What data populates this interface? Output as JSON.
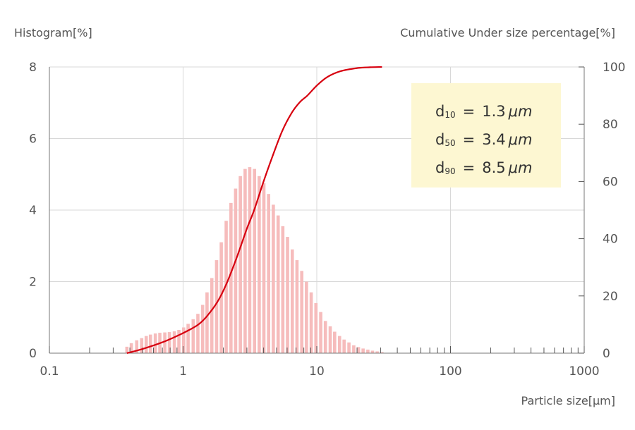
{
  "chart_data": {
    "type": "bar",
    "x_scale": "log",
    "xlim": [
      0.1,
      1000
    ],
    "ylim_left": [
      0,
      8
    ],
    "ylim_right": [
      0,
      100
    ],
    "y_left_label": "Histogram[%]",
    "y_right_label": "Cumulative Under size percentage[%]",
    "xlabel": "Particle size[μm]",
    "x_tick_labels": [
      "0.1",
      "1",
      "10",
      "100",
      "1000"
    ],
    "y_left_ticks": [
      "0",
      "2",
      "4",
      "6",
      "8"
    ],
    "y_right_ticks": [
      "0",
      "20",
      "40",
      "60",
      "80",
      "100"
    ],
    "grid": true,
    "colors": {
      "histogram": "#f6bcbc",
      "cumulative": "#d7000f",
      "box": "#fdf7d2"
    },
    "series": [
      {
        "name": "Histogram",
        "type": "bar",
        "axis": "left",
        "x": [
          0.38,
          0.41,
          0.45,
          0.49,
          0.53,
          0.57,
          0.62,
          0.67,
          0.73,
          0.79,
          0.86,
          0.93,
          1.01,
          1.09,
          1.19,
          1.29,
          1.4,
          1.51,
          1.64,
          1.78,
          1.93,
          2.1,
          2.28,
          2.47,
          2.68,
          2.91,
          3.15,
          3.42,
          3.71,
          4.02,
          4.36,
          4.73,
          5.14,
          5.57,
          6.04,
          6.56,
          7.11,
          7.72,
          8.37,
          9.08,
          9.85,
          10.7,
          11.6,
          12.6,
          13.6,
          14.8,
          16.0,
          17.4,
          18.9,
          20.5,
          22.2,
          24.1,
          26.1,
          28.3,
          30.7
        ],
        "values": [
          0.18,
          0.28,
          0.36,
          0.42,
          0.48,
          0.52,
          0.55,
          0.57,
          0.58,
          0.59,
          0.61,
          0.65,
          0.72,
          0.82,
          0.95,
          1.1,
          1.35,
          1.7,
          2.1,
          2.6,
          3.1,
          3.7,
          4.2,
          4.6,
          4.95,
          5.15,
          5.2,
          5.15,
          4.95,
          4.75,
          4.45,
          4.15,
          3.85,
          3.55,
          3.25,
          2.9,
          2.6,
          2.3,
          2.0,
          1.7,
          1.4,
          1.15,
          0.9,
          0.75,
          0.6,
          0.48,
          0.38,
          0.3,
          0.22,
          0.17,
          0.13,
          0.1,
          0.07,
          0.05,
          0.03
        ]
      },
      {
        "name": "Cumulative",
        "type": "line",
        "axis": "right",
        "x": [
          0.38,
          0.5,
          0.7,
          0.9,
          1.1,
          1.3,
          1.5,
          1.8,
          2.1,
          2.5,
          3.0,
          3.4,
          4.0,
          4.6,
          5.5,
          6.5,
          7.5,
          8.5,
          10,
          12,
          15,
          20,
          25,
          30
        ],
        "values": [
          0,
          1.5,
          3.8,
          6.0,
          8.0,
          10.0,
          12.8,
          17.8,
          24.0,
          33.0,
          43.5,
          50.0,
          60.0,
          68.0,
          77.5,
          84.0,
          87.8,
          90.0,
          93.5,
          96.5,
          98.5,
          99.6,
          99.9,
          100
        ]
      }
    ],
    "annotations": [
      {
        "symbol": "d",
        "sub": "10",
        "eq": "=",
        "value": "1.3",
        "unit": "μm"
      },
      {
        "symbol": "d",
        "sub": "50",
        "eq": "=",
        "value": "3.4",
        "unit": "μm"
      },
      {
        "symbol": "d",
        "sub": "90",
        "eq": "=",
        "value": "8.5",
        "unit": "μm"
      }
    ]
  }
}
